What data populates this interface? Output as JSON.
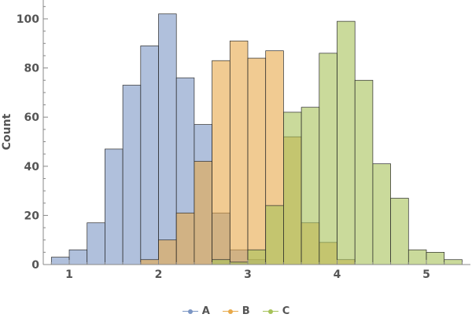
{
  "chart_data": {
    "type": "histogram",
    "xlabel": "",
    "ylabel": "Count",
    "xlim": [
      0.8,
      5.5
    ],
    "ylim": [
      0,
      107
    ],
    "xticks": [
      1,
      2,
      3,
      4,
      5
    ],
    "yticks": [
      0,
      20,
      40,
      60,
      80,
      100
    ],
    "bin_width": 0.2,
    "grid": false,
    "legend_position": "bottom-center",
    "series": [
      {
        "name": "A",
        "color": "#7b96c4",
        "bins": [
          {
            "x0": 0.8,
            "count": 3
          },
          {
            "x0": 1.0,
            "count": 6
          },
          {
            "x0": 1.2,
            "count": 17
          },
          {
            "x0": 1.4,
            "count": 47
          },
          {
            "x0": 1.6,
            "count": 73
          },
          {
            "x0": 1.8,
            "count": 89
          },
          {
            "x0": 2.0,
            "count": 102
          },
          {
            "x0": 2.2,
            "count": 76
          },
          {
            "x0": 2.4,
            "count": 57
          },
          {
            "x0": 2.6,
            "count": 21
          },
          {
            "x0": 2.8,
            "count": 6
          },
          {
            "x0": 3.0,
            "count": 2
          }
        ]
      },
      {
        "name": "B",
        "color": "#e8a94a",
        "bins": [
          {
            "x0": 1.8,
            "count": 2
          },
          {
            "x0": 2.0,
            "count": 10
          },
          {
            "x0": 2.2,
            "count": 21
          },
          {
            "x0": 2.4,
            "count": 42
          },
          {
            "x0": 2.6,
            "count": 83
          },
          {
            "x0": 2.8,
            "count": 91
          },
          {
            "x0": 3.0,
            "count": 84
          },
          {
            "x0": 3.2,
            "count": 87
          },
          {
            "x0": 3.4,
            "count": 52
          },
          {
            "x0": 3.6,
            "count": 17
          },
          {
            "x0": 3.8,
            "count": 9
          },
          {
            "x0": 4.0,
            "count": 2
          }
        ]
      },
      {
        "name": "C",
        "color": "#a6c259",
        "bins": [
          {
            "x0": 2.6,
            "count": 2
          },
          {
            "x0": 2.8,
            "count": 1
          },
          {
            "x0": 3.0,
            "count": 6
          },
          {
            "x0": 3.2,
            "count": 24
          },
          {
            "x0": 3.4,
            "count": 62
          },
          {
            "x0": 3.6,
            "count": 64
          },
          {
            "x0": 3.8,
            "count": 86
          },
          {
            "x0": 4.0,
            "count": 99
          },
          {
            "x0": 4.2,
            "count": 75
          },
          {
            "x0": 4.4,
            "count": 41
          },
          {
            "x0": 4.6,
            "count": 27
          },
          {
            "x0": 4.8,
            "count": 6
          },
          {
            "x0": 5.0,
            "count": 5
          },
          {
            "x0": 5.2,
            "count": 2
          }
        ]
      }
    ]
  }
}
